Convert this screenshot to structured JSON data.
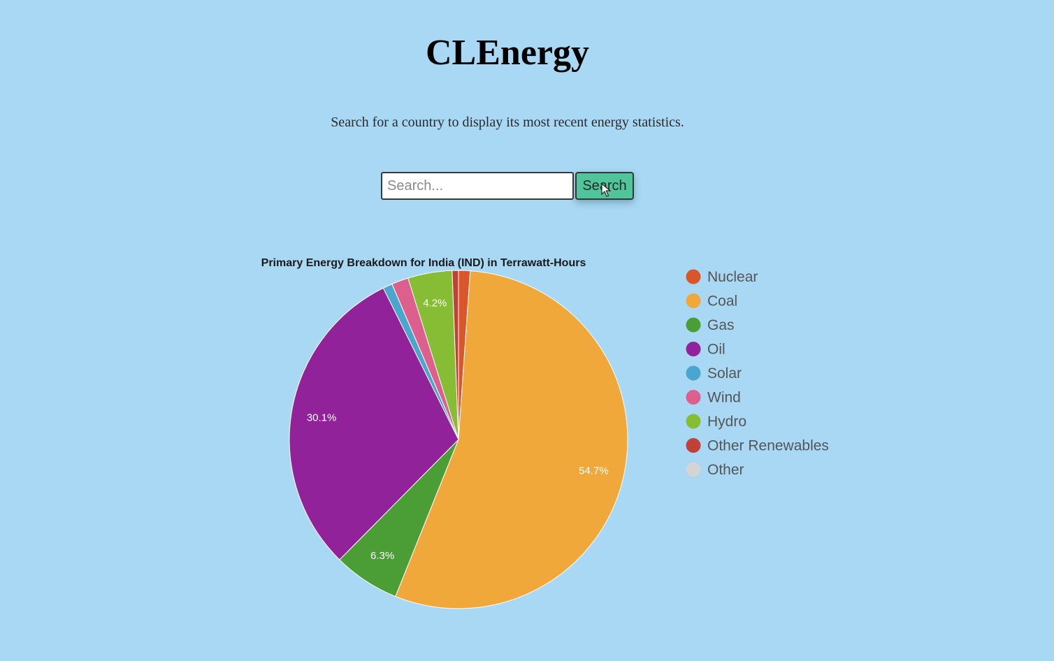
{
  "header": {
    "title": "CLEnergy",
    "subtitle": "Search for a country to display its most recent energy statistics."
  },
  "search": {
    "placeholder": "Search...",
    "value": "",
    "button_label": "Search"
  },
  "chart_data": {
    "type": "pie",
    "title": "Primary Energy Breakdown for India (IND) in Terrawatt-Hours",
    "legend_position": "right",
    "categories": [
      "Nuclear",
      "Coal",
      "Gas",
      "Oil",
      "Solar",
      "Wind",
      "Hydro",
      "Other Renewables",
      "Other"
    ],
    "values": [
      1.1,
      54.7,
      6.3,
      30.1,
      0.9,
      1.6,
      4.2,
      0.6,
      0.0
    ],
    "colors": [
      "#d9562b",
      "#f1a83a",
      "#4b9e35",
      "#912299",
      "#4aa6cf",
      "#dc5f8e",
      "#86bd35",
      "#c0403a",
      "#d4d4d4"
    ],
    "data_labels": [
      "",
      "54.7%",
      "6.3%",
      "30.1%",
      "",
      "",
      "4.2%",
      "",
      ""
    ]
  }
}
